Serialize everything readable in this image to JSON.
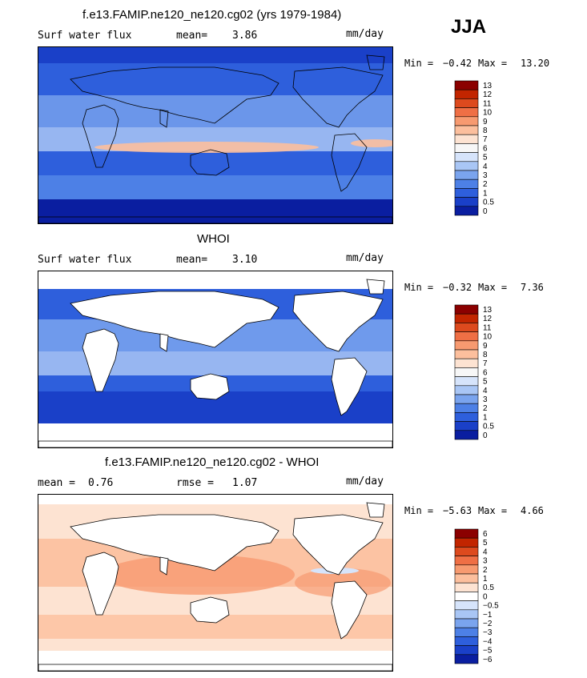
{
  "season": "JJA",
  "panels": [
    {
      "title": "f.e13.FAMIP.ne120_ne120.cg02 (yrs 1979-1984)",
      "left_label": "Surf water flux",
      "stat_label": "mean=",
      "stat_value": "3.86",
      "units": "mm/day",
      "min_label": "Min =",
      "min_value": "−0.42",
      "max_label": "Max =",
      "max_value": "13.20",
      "colorbar_levels": [
        "13",
        "12",
        "11",
        "10",
        "9",
        "8",
        "7",
        "6",
        "5",
        "4",
        "3",
        "2",
        "1",
        "0.5",
        "0"
      ]
    },
    {
      "title": "WHOI",
      "left_label": "Surf water flux",
      "stat_label": "mean=",
      "stat_value": "3.10",
      "units": "mm/day",
      "min_label": "Min =",
      "min_value": "−0.32",
      "max_label": "Max =",
      "max_value": "7.36",
      "colorbar_levels": [
        "13",
        "12",
        "11",
        "10",
        "9",
        "8",
        "7",
        "6",
        "5",
        "4",
        "3",
        "2",
        "1",
        "0.5",
        "0"
      ]
    },
    {
      "title": "f.e13.FAMIP.ne120_ne120.cg02 - WHOI",
      "left_label": "mean =",
      "left_value": "0.76",
      "stat_label": "rmse =",
      "stat_value": "1.07",
      "units": "mm/day",
      "min_label": "Min =",
      "min_value": "−5.63",
      "max_label": "Max =",
      "max_value": "4.66",
      "colorbar_levels": [
        "6",
        "5",
        "4",
        "3",
        "2",
        "1",
        "0.5",
        "0",
        "−0.5",
        "−1",
        "−2",
        "−3",
        "−4",
        "−5",
        "−6"
      ]
    }
  ],
  "colors": {
    "abs_scale": [
      "#8b0000",
      "#c22500",
      "#dd4a1e",
      "#ef6f45",
      "#f79a70",
      "#fcbf9d",
      "#fde3d2",
      "#f7f7f7",
      "#d6e4fb",
      "#a9c6f5",
      "#7aa4ee",
      "#4d80e6",
      "#2e5fdc",
      "#1a40c8",
      "#0a1ea0"
    ],
    "diff_scale": [
      "#8b0000",
      "#c22500",
      "#dd4a1e",
      "#ef6f45",
      "#f79a70",
      "#fcbf9d",
      "#fde3d2",
      "#ffffff",
      "#d6e4fb",
      "#a9c6f5",
      "#7aa4ee",
      "#4d80e6",
      "#2e5fdc",
      "#1a40c8",
      "#0a1ea0"
    ],
    "land": "#ffffff",
    "coast": "#000000"
  }
}
